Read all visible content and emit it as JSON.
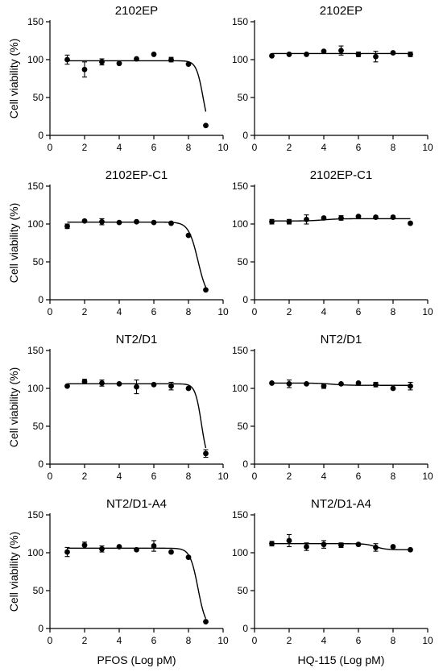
{
  "figure": {
    "x_axis_labels": [
      "PFOS (Log pM)",
      "HQ-115 (Log pM)"
    ],
    "y_axis_label": "Cell viability (%)"
  },
  "chart_data": [
    {
      "type": "scatter",
      "title": "2102EP",
      "xlabel": "",
      "ylabel": "Cell viability (%)",
      "xlim": [
        0,
        10
      ],
      "ylim": [
        0,
        150
      ],
      "xticks": [
        "0",
        "2",
        "4",
        "6",
        "8",
        "10"
      ],
      "yticks": [
        "0",
        "50",
        "100",
        "150"
      ],
      "points": [
        {
          "x": 1,
          "y": 100,
          "err": 6
        },
        {
          "x": 2,
          "y": 87,
          "err": 10
        },
        {
          "x": 3,
          "y": 97,
          "err": 4
        },
        {
          "x": 4,
          "y": 95,
          "err": 0
        },
        {
          "x": 5,
          "y": 101,
          "err": 0
        },
        {
          "x": 6,
          "y": 107,
          "err": 0
        },
        {
          "x": 7,
          "y": 100,
          "err": 3
        },
        {
          "x": 8,
          "y": 94,
          "err": 0
        },
        {
          "x": 9,
          "y": 13,
          "err": 0
        }
      ],
      "fit": {
        "top": 98.5,
        "bottom": 0,
        "ec50": 8.85,
        "hill": 2.2
      }
    },
    {
      "type": "scatter",
      "title": "2102EP",
      "xlabel": "",
      "ylabel": "",
      "xlim": [
        0,
        10
      ],
      "ylim": [
        0,
        150
      ],
      "xticks": [
        "0",
        "2",
        "4",
        "6",
        "8",
        "10"
      ],
      "yticks": [
        "0",
        "50",
        "100",
        "150"
      ],
      "points": [
        {
          "x": 1,
          "y": 105,
          "err": 0
        },
        {
          "x": 2,
          "y": 107,
          "err": 0
        },
        {
          "x": 3,
          "y": 107,
          "err": 0
        },
        {
          "x": 4,
          "y": 111,
          "err": 0
        },
        {
          "x": 5,
          "y": 112,
          "err": 6
        },
        {
          "x": 6,
          "y": 107,
          "err": 3
        },
        {
          "x": 7,
          "y": 104,
          "err": 7
        },
        {
          "x": 8,
          "y": 109,
          "err": 0
        },
        {
          "x": 9,
          "y": 107,
          "err": 3
        }
      ],
      "fit": {
        "top": 108,
        "bottom": 108,
        "ec50": 5,
        "hill": 1
      }
    },
    {
      "type": "scatter",
      "title": "2102EP-C1",
      "xlabel": "",
      "ylabel": "Cell viability (%)",
      "xlim": [
        0,
        10
      ],
      "ylim": [
        0,
        150
      ],
      "xticks": [
        "0",
        "2",
        "4",
        "6",
        "8",
        "10"
      ],
      "yticks": [
        "0",
        "50",
        "100",
        "150"
      ],
      "points": [
        {
          "x": 1,
          "y": 97,
          "err": 3
        },
        {
          "x": 2,
          "y": 104,
          "err": 0
        },
        {
          "x": 3,
          "y": 103,
          "err": 4
        },
        {
          "x": 4,
          "y": 102,
          "err": 0
        },
        {
          "x": 5,
          "y": 103,
          "err": 0
        },
        {
          "x": 6,
          "y": 102,
          "err": 0
        },
        {
          "x": 7,
          "y": 101,
          "err": 0
        },
        {
          "x": 8,
          "y": 85,
          "err": 0
        },
        {
          "x": 9,
          "y": 13,
          "err": 0
        }
      ],
      "fit": {
        "top": 102.5,
        "bottom": 0,
        "ec50": 8.55,
        "hill": 1.6
      }
    },
    {
      "type": "scatter",
      "title": "2102EP-C1",
      "xlabel": "",
      "ylabel": "",
      "xlim": [
        0,
        10
      ],
      "ylim": [
        0,
        150
      ],
      "xticks": [
        "0",
        "2",
        "4",
        "6",
        "8",
        "10"
      ],
      "yticks": [
        "0",
        "50",
        "100",
        "150"
      ],
      "points": [
        {
          "x": 1,
          "y": 103,
          "err": 3
        },
        {
          "x": 2,
          "y": 103,
          "err": 3
        },
        {
          "x": 3,
          "y": 106,
          "err": 6
        },
        {
          "x": 4,
          "y": 108,
          "err": 0
        },
        {
          "x": 5,
          "y": 108,
          "err": 3
        },
        {
          "x": 6,
          "y": 110,
          "err": 0
        },
        {
          "x": 7,
          "y": 109,
          "err": 0
        },
        {
          "x": 8,
          "y": 109,
          "err": 0
        },
        {
          "x": 9,
          "y": 101,
          "err": 0
        }
      ],
      "fit": {
        "top": 104,
        "bottom": 107,
        "ec50": 4,
        "hill": 1
      }
    },
    {
      "type": "scatter",
      "title": "NT2/D1",
      "xlabel": "",
      "ylabel": "Cell viability (%)",
      "xlim": [
        0,
        10
      ],
      "ylim": [
        0,
        150
      ],
      "xticks": [
        "0",
        "2",
        "4",
        "6",
        "8",
        "10"
      ],
      "yticks": [
        "0",
        "50",
        "100",
        "150"
      ],
      "points": [
        {
          "x": 1,
          "y": 103,
          "err": 0
        },
        {
          "x": 2,
          "y": 109,
          "err": 3
        },
        {
          "x": 3,
          "y": 107,
          "err": 4
        },
        {
          "x": 4,
          "y": 106,
          "err": 0
        },
        {
          "x": 5,
          "y": 102,
          "err": 9
        },
        {
          "x": 6,
          "y": 105,
          "err": 0
        },
        {
          "x": 7,
          "y": 103,
          "err": 5
        },
        {
          "x": 8,
          "y": 100,
          "err": 0
        },
        {
          "x": 9,
          "y": 14,
          "err": 5
        }
      ],
      "fit": {
        "top": 106,
        "bottom": 0,
        "ec50": 8.75,
        "hill": 2.4
      }
    },
    {
      "type": "scatter",
      "title": "NT2/D1",
      "xlabel": "",
      "ylabel": "",
      "xlim": [
        0,
        10
      ],
      "ylim": [
        0,
        150
      ],
      "xticks": [
        "0",
        "2",
        "4",
        "6",
        "8",
        "10"
      ],
      "yticks": [
        "0",
        "50",
        "100",
        "150"
      ],
      "points": [
        {
          "x": 1,
          "y": 107,
          "err": 0
        },
        {
          "x": 2,
          "y": 106,
          "err": 5
        },
        {
          "x": 3,
          "y": 106,
          "err": 0
        },
        {
          "x": 4,
          "y": 103,
          "err": 3
        },
        {
          "x": 5,
          "y": 106,
          "err": 0
        },
        {
          "x": 6,
          "y": 107,
          "err": 0
        },
        {
          "x": 7,
          "y": 105,
          "err": 3
        },
        {
          "x": 8,
          "y": 100,
          "err": 0
        },
        {
          "x": 9,
          "y": 103,
          "err": 5
        }
      ],
      "fit": {
        "top": 107,
        "bottom": 104,
        "ec50": 4.5,
        "hill": 1
      }
    },
    {
      "type": "scatter",
      "title": "NT2/D1-A4",
      "xlabel": "PFOS (Log pM)",
      "ylabel": "Cell viability (%)",
      "xlim": [
        0,
        10
      ],
      "ylim": [
        0,
        150
      ],
      "xticks": [
        "0",
        "2",
        "4",
        "6",
        "8",
        "10"
      ],
      "yticks": [
        "0",
        "50",
        "100",
        "150"
      ],
      "points": [
        {
          "x": 1,
          "y": 101,
          "err": 6
        },
        {
          "x": 2,
          "y": 110,
          "err": 4
        },
        {
          "x": 3,
          "y": 105,
          "err": 4
        },
        {
          "x": 4,
          "y": 108,
          "err": 0
        },
        {
          "x": 5,
          "y": 104,
          "err": 0
        },
        {
          "x": 6,
          "y": 109,
          "err": 7
        },
        {
          "x": 7,
          "y": 101,
          "err": 0
        },
        {
          "x": 8,
          "y": 94,
          "err": 0
        },
        {
          "x": 9,
          "y": 9,
          "err": 0
        }
      ],
      "fit": {
        "top": 106,
        "bottom": 0,
        "ec50": 8.55,
        "hill": 1.9
      }
    },
    {
      "type": "scatter",
      "title": "NT2/D1-A4",
      "xlabel": "HQ-115 (Log pM)",
      "ylabel": "",
      "xlim": [
        0,
        10
      ],
      "ylim": [
        0,
        150
      ],
      "xticks": [
        "0",
        "2",
        "4",
        "6",
        "8",
        "10"
      ],
      "yticks": [
        "0",
        "50",
        "100",
        "150"
      ],
      "points": [
        {
          "x": 1,
          "y": 112,
          "err": 3
        },
        {
          "x": 2,
          "y": 116,
          "err": 8
        },
        {
          "x": 3,
          "y": 108,
          "err": 5
        },
        {
          "x": 4,
          "y": 111,
          "err": 5
        },
        {
          "x": 5,
          "y": 110,
          "err": 3
        },
        {
          "x": 6,
          "y": 111,
          "err": 0
        },
        {
          "x": 7,
          "y": 107,
          "err": 5
        },
        {
          "x": 8,
          "y": 108,
          "err": 0
        },
        {
          "x": 9,
          "y": 104,
          "err": 0
        }
      ],
      "fit": {
        "top": 112,
        "bottom": 104,
        "ec50": 7,
        "hill": 1.5
      }
    }
  ]
}
